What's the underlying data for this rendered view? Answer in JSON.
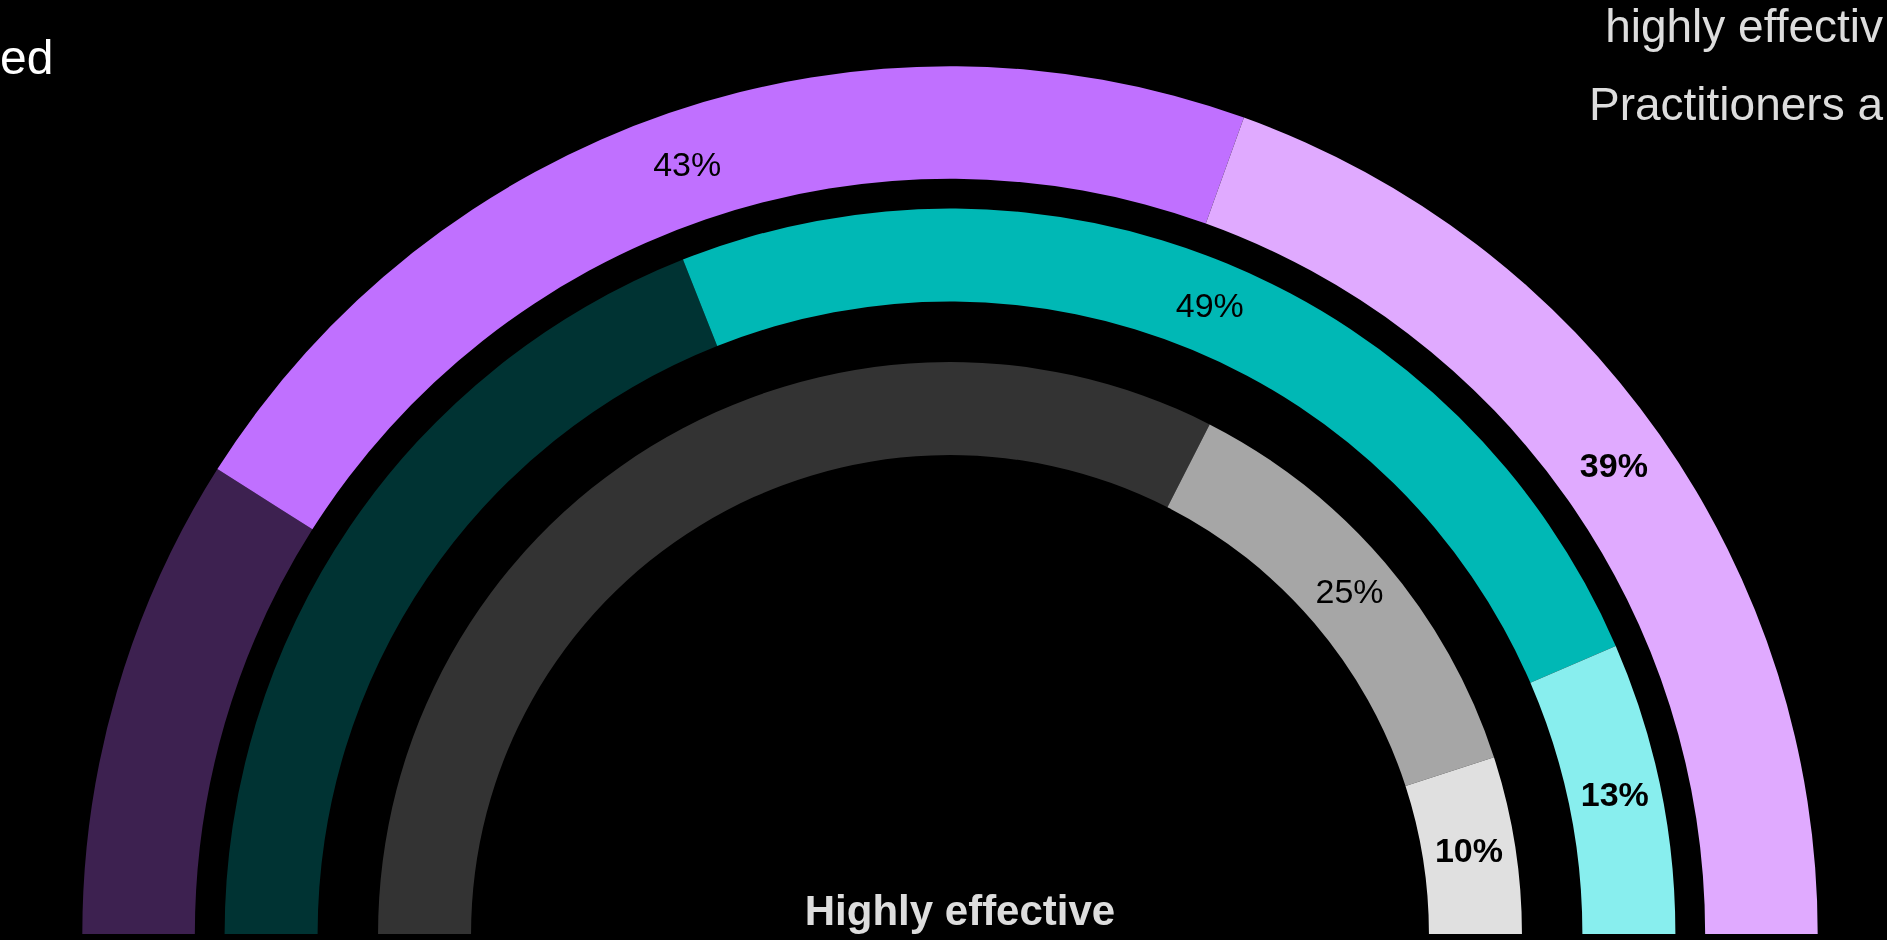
{
  "chart_data": {
    "type": "donut",
    "categories": [
      null,
      null,
      null
    ],
    "series": [
      {
        "colors": [
          "#3d2150",
          "#c070ff",
          "#e0aaff"
        ],
        "values": [
          18,
          43,
          39
        ],
        "value_labels": [
          null,
          "43%",
          "39%"
        ]
      },
      {
        "colors": [
          "#003333",
          "#00b8b5",
          "#88eeee"
        ],
        "values": [
          38,
          49,
          13
        ],
        "value_labels": [
          null,
          "49%",
          "13%"
        ]
      },
      {
        "colors": [
          "#333333",
          "#a6a6a6",
          "#e0e0e0"
        ],
        "values": [
          65,
          25,
          10
        ],
        "value_labels": [
          null,
          "25%",
          "10%"
        ]
      }
    ],
    "annotations": [
      "ed",
      "highly effectiv",
      "Practitioners a",
      "Highly effective"
    ]
  }
}
